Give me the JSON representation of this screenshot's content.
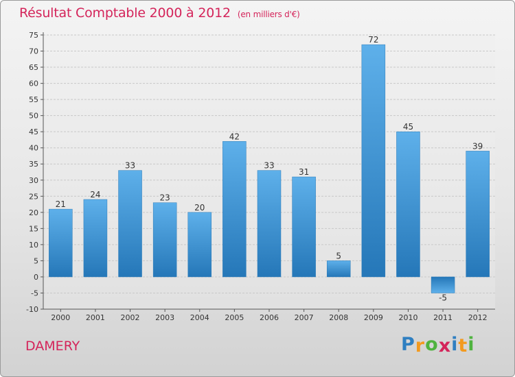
{
  "chart_data": {
    "type": "bar",
    "title": "Résultat Comptable 2000 à 2012",
    "unit_note": "(en milliers d'€)",
    "categories": [
      "2000",
      "2001",
      "2002",
      "2003",
      "2004",
      "2005",
      "2006",
      "2007",
      "2008",
      "2009",
      "2010",
      "2011",
      "2012"
    ],
    "values": [
      21,
      24,
      33,
      23,
      20,
      42,
      33,
      31,
      5,
      72,
      45,
      -5,
      39
    ],
    "ylim": [
      -10,
      75
    ],
    "yticks": [
      -10,
      -5,
      0,
      5,
      10,
      15,
      20,
      25,
      30,
      35,
      40,
      45,
      50,
      55,
      60,
      65,
      70,
      75
    ],
    "grid": true,
    "bar_color": "#3a8fd6",
    "title_color": "#d4245a"
  },
  "footer": {
    "commune": "DAMERY"
  },
  "logo": {
    "letters": [
      {
        "ch": "P",
        "color": "#2f7fc1"
      },
      {
        "ch": "r",
        "color": "#f39a1f"
      },
      {
        "ch": "o",
        "color": "#4fb33f"
      },
      {
        "ch": "x",
        "color": "#d4245a"
      },
      {
        "ch": "i",
        "color": "#2f7fc1"
      },
      {
        "ch": "t",
        "color": "#f39a1f"
      },
      {
        "ch": "i",
        "color": "#4fb33f"
      }
    ]
  }
}
